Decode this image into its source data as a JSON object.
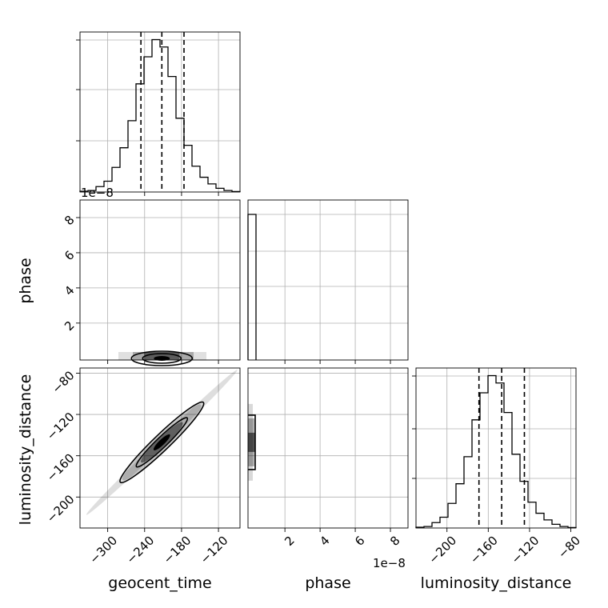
{
  "chart_data": {
    "type": "corner",
    "parameters": [
      "geocent_time",
      "phase",
      "luminosity_distance"
    ],
    "axis_labels": {
      "geocent_time": "geocent_time",
      "phase": "phase",
      "luminosity_distance": "luminosity_distance"
    },
    "ranges": {
      "geocent_time": [
        -345,
        -85
      ],
      "phase": [
        -1e-09,
        9e-08
      ],
      "luminosity_distance": [
        -230,
        -75
      ]
    },
    "ticks": {
      "geocent_time": [
        -300,
        -240,
        -180,
        -120
      ],
      "phase": [
        2e-08,
        4e-08,
        6e-08,
        8e-08
      ],
      "luminosity_distance": [
        -200,
        -160,
        -120,
        -80
      ]
    },
    "tick_labels": {
      "geocent_time": [
        "−300",
        "−240",
        "−180",
        "−120"
      ],
      "phase": [
        "2",
        "4",
        "6",
        "8"
      ],
      "phase_x": [
        "2",
        "4",
        "6",
        "8"
      ],
      "luminosity_distance": [
        "−200",
        "−160",
        "−120",
        "−80"
      ]
    },
    "offset_text": "1e−8",
    "histograms": {
      "geocent_time": {
        "edges": [
          -345,
          -332,
          -319,
          -306,
          -293,
          -280,
          -267,
          -254,
          -241,
          -228,
          -215,
          -202,
          -189,
          -176,
          -163,
          -150,
          -137,
          -124,
          -111,
          -98,
          -85
        ],
        "counts": [
          3,
          6,
          22,
          44,
          100,
          180,
          290,
          440,
          550,
          620,
          590,
          470,
          300,
          190,
          105,
          60,
          33,
          15,
          6,
          2
        ]
      },
      "luminosity_distance": {
        "edges": [
          -230,
          -222.25,
          -214.5,
          -206.75,
          -199,
          -191.25,
          -183.5,
          -175.75,
          -168,
          -160.25,
          -152.5,
          -144.75,
          -137,
          -129.25,
          -121.5,
          -113.75,
          -106,
          -98.25,
          -90.5,
          -82.75,
          -75
        ],
        "counts": [
          3,
          6,
          22,
          44,
          100,
          180,
          290,
          440,
          550,
          620,
          590,
          470,
          300,
          190,
          105,
          60,
          33,
          15,
          6,
          2
        ]
      },
      "phase": {
        "edges": [
          -1e-09,
          3.55e-09,
          8.1e-09
        ],
        "counts": [
          1,
          0
        ]
      }
    },
    "quantiles": {
      "geocent_time": [
        -246,
        -212,
        -176
      ],
      "luminosity_distance": [
        -169,
        -147,
        -125
      ]
    },
    "grid": true,
    "colors": {
      "line": "#000000",
      "grid": "#b0b0b0",
      "density": "#000000"
    }
  }
}
